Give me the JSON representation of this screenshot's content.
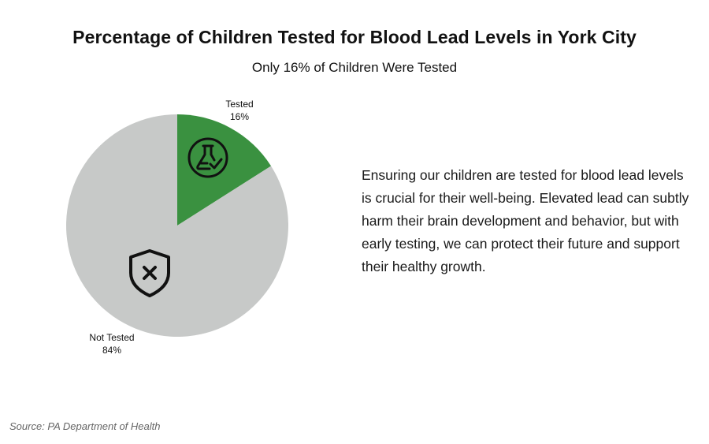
{
  "chart_data": {
    "type": "pie",
    "title": "Percentage of Children Tested for Blood Lead Levels in York City",
    "subtitle": "Only 16% of Children Were Tested",
    "slices": [
      {
        "name": "Tested",
        "value": 16,
        "label_value": "16%",
        "color": "#3a9140",
        "icon": "flask-check-icon"
      },
      {
        "name": "Not Tested",
        "value": 84,
        "label_value": "84%",
        "color": "#c7c9c8",
        "icon": "shield-x-icon"
      }
    ]
  },
  "description": "Ensuring our children are tested for blood lead levels is crucial for their well-being. Elevated lead can subtly harm their brain development and behavior, but with early testing, we can protect their future and support their healthy growth.",
  "source": "Source: PA Department of Health"
}
